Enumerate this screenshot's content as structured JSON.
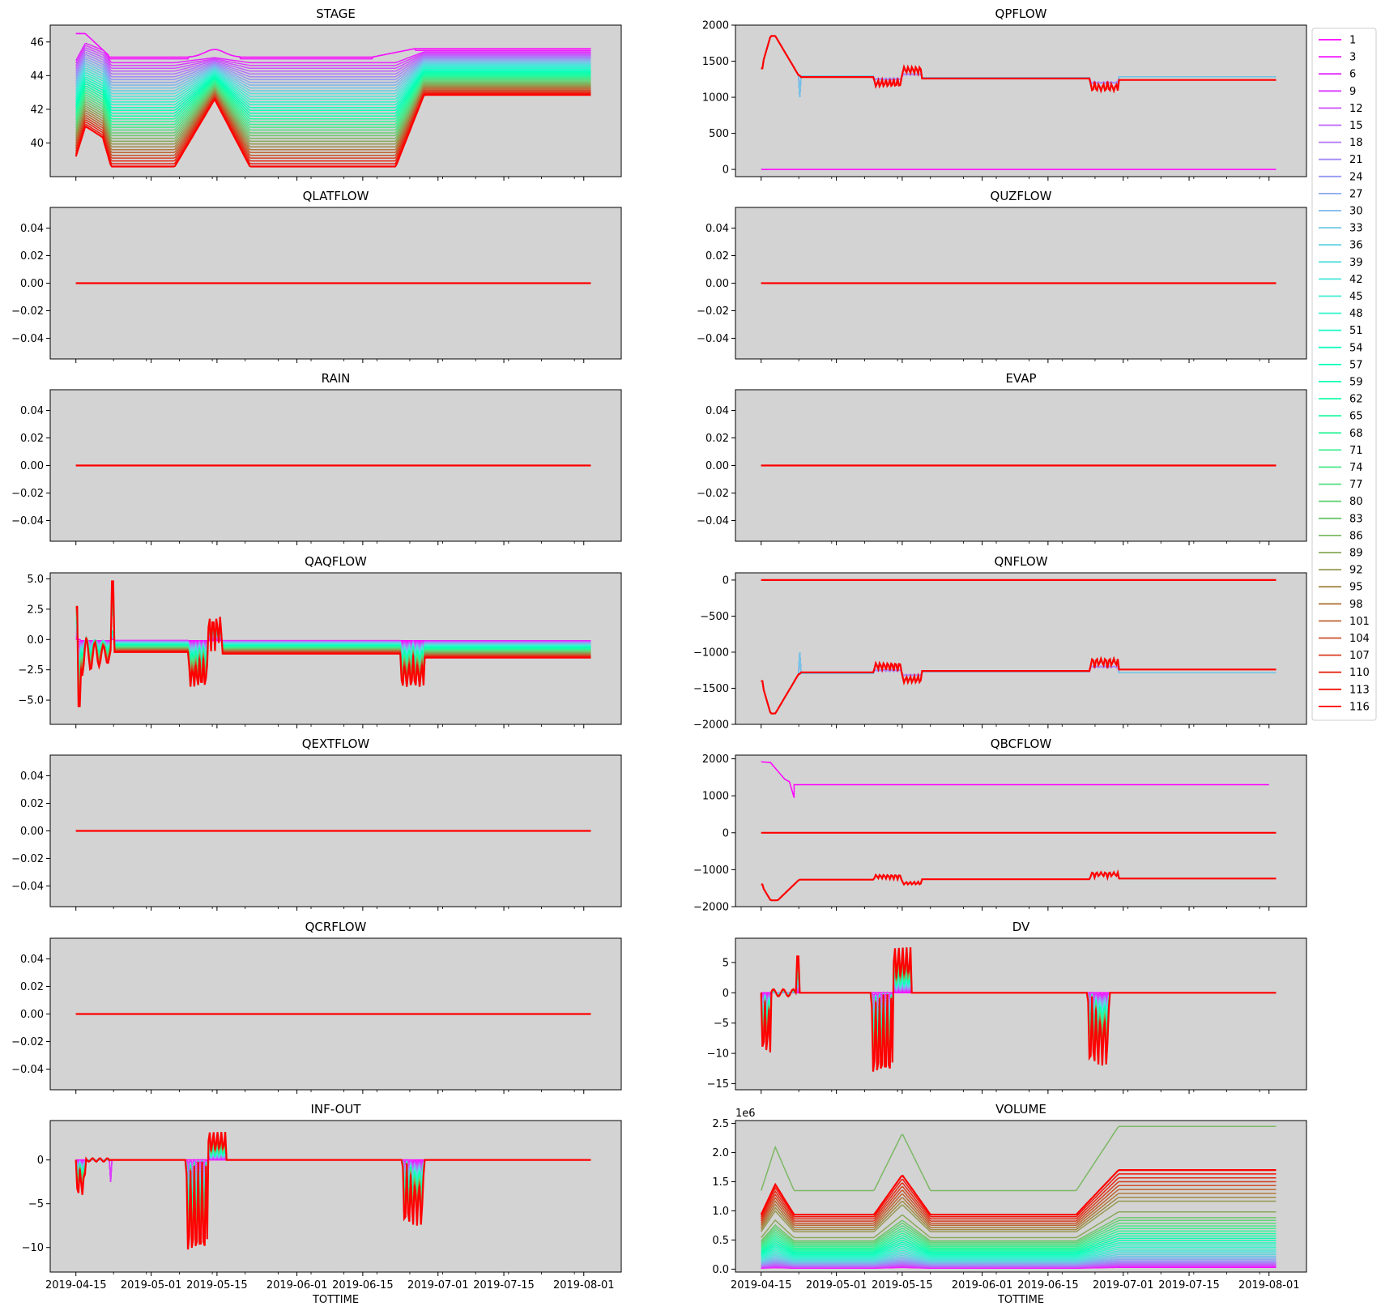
{
  "figure": {
    "xlabel": "TOTTIME",
    "x_tick_labels": [
      "2019-04-15",
      "2019-05-01",
      "2019-05-15",
      "2019-06-01",
      "2019-06-15",
      "2019-07-01",
      "2019-07-15",
      "2019-08-01"
    ],
    "x_tick_dates": [
      "2019-04-15",
      "2019-05-01",
      "2019-05-15",
      "2019-06-01",
      "2019-06-15",
      "2019-07-01",
      "2019-07-15",
      "2019-08-01"
    ],
    "x_range": [
      "2019-04-15",
      "2019-08-02"
    ]
  },
  "legend": {
    "placement": "right of QPFLOW panel",
    "labels": [
      "1",
      "3",
      "6",
      "9",
      "12",
      "15",
      "18",
      "21",
      "24",
      "27",
      "30",
      "33",
      "36",
      "39",
      "42",
      "45",
      "48",
      "51",
      "54",
      "57",
      "59",
      "62",
      "65",
      "68",
      "71",
      "74",
      "77",
      "80",
      "83",
      "86",
      "89",
      "92",
      "95",
      "98",
      "101",
      "104",
      "107",
      "110",
      "113",
      "116"
    ]
  },
  "colors": {
    "axes_background": "#d3d3d3",
    "colormap": "rainbow",
    "first_series": "#8000ff",
    "last_series": "#ff0000"
  },
  "chart_data": [
    {
      "id": "STAGE",
      "title": "STAGE",
      "type": "line",
      "ylim": [
        38,
        47
      ],
      "yticks": [
        40,
        42,
        44,
        46
      ],
      "ytick_labels": [
        "40",
        "42",
        "44",
        "46"
      ],
      "grid": false,
      "series_summary": {
        "top_series_1": [
          [
            "2019-04-15",
            46.5
          ],
          [
            "2019-04-20",
            45.2
          ],
          [
            "2019-05-10",
            45.1
          ],
          [
            "2019-05-15",
            45.5
          ],
          [
            "2019-05-20",
            45.1
          ],
          [
            "2019-06-20",
            45.1
          ],
          [
            "2019-06-25",
            45.5
          ],
          [
            "2019-08-01",
            45.6
          ]
        ],
        "bottom_series_116": [
          [
            "2019-04-15",
            39.2
          ],
          [
            "2019-04-17",
            41.0
          ],
          [
            "2019-04-21",
            40.4
          ],
          [
            "2019-04-22",
            38.7
          ],
          [
            "2019-05-05",
            38.7
          ],
          [
            "2019-05-14",
            42.6
          ],
          [
            "2019-05-22",
            38.6
          ],
          [
            "2019-06-22",
            38.6
          ],
          [
            "2019-06-28",
            42.8
          ],
          [
            "2019-08-01",
            42.8
          ]
        ]
      }
    },
    {
      "id": "QPFLOW",
      "title": "QPFLOW",
      "type": "line",
      "ylim": [
        -100,
        2000
      ],
      "yticks": [
        0,
        500,
        1000,
        1500,
        2000
      ],
      "ytick_labels": [
        "0",
        "500",
        "1000",
        "1500",
        "2000"
      ],
      "grid": false,
      "series_summary": {
        "series_1": [
          [
            "2019-04-15",
            0
          ],
          [
            "2019-08-01",
            0
          ]
        ],
        "others": [
          [
            "2019-04-15",
            1400
          ],
          [
            "2019-04-17",
            1850
          ],
          [
            "2019-04-22",
            1300
          ],
          [
            "2019-05-09",
            1270
          ],
          [
            "2019-05-12",
            1150
          ],
          [
            "2019-05-16",
            1400
          ],
          [
            "2019-05-19",
            1270
          ],
          [
            "2019-06-22",
            1260
          ],
          [
            "2019-06-25",
            1120
          ],
          [
            "2019-07-01",
            1250
          ],
          [
            "2019-08-01",
            1250
          ]
        ]
      }
    },
    {
      "id": "QLATFLOW",
      "title": "QLATFLOW",
      "type": "line",
      "ylim": [
        -0.055,
        0.055
      ],
      "yticks": [
        -0.04,
        -0.02,
        0,
        0.02,
        0.04
      ],
      "ytick_labels": [
        "−0.04",
        "−0.02",
        "0.00",
        "0.02",
        "0.04"
      ],
      "grid": false,
      "series_summary": {
        "all": [
          [
            "2019-04-15",
            0
          ],
          [
            "2019-08-01",
            0
          ]
        ]
      }
    },
    {
      "id": "QUZFLOW",
      "title": "QUZFLOW",
      "type": "line",
      "ylim": [
        -0.055,
        0.055
      ],
      "yticks": [
        -0.04,
        -0.02,
        0,
        0.02,
        0.04
      ],
      "ytick_labels": [
        "−0.04",
        "−0.02",
        "0.00",
        "0.02",
        "0.04"
      ],
      "grid": false,
      "series_summary": {
        "all": [
          [
            "2019-04-15",
            0
          ],
          [
            "2019-08-01",
            0
          ]
        ]
      }
    },
    {
      "id": "RAIN",
      "title": "RAIN",
      "type": "line",
      "ylim": [
        -0.055,
        0.055
      ],
      "yticks": [
        -0.04,
        -0.02,
        0,
        0.02,
        0.04
      ],
      "ytick_labels": [
        "−0.04",
        "−0.02",
        "0.00",
        "0.02",
        "0.04"
      ],
      "grid": false,
      "series_summary": {
        "all": [
          [
            "2019-04-15",
            0
          ],
          [
            "2019-08-01",
            0
          ]
        ]
      }
    },
    {
      "id": "EVAP",
      "title": "EVAP",
      "type": "line",
      "ylim": [
        -0.055,
        0.055
      ],
      "yticks": [
        -0.04,
        -0.02,
        0,
        0.02,
        0.04
      ],
      "ytick_labels": [
        "−0.04",
        "−0.02",
        "0.00",
        "0.02",
        "0.04"
      ],
      "grid": false,
      "series_summary": {
        "all": [
          [
            "2019-04-15",
            0
          ],
          [
            "2019-08-01",
            0
          ]
        ]
      }
    },
    {
      "id": "QAQFLOW",
      "title": "QAQFLOW",
      "type": "line",
      "ylim": [
        -7,
        5.5
      ],
      "yticks": [
        -5,
        -2.5,
        0,
        2.5,
        5
      ],
      "ytick_labels": [
        "−5.0",
        "−2.5",
        "0.0",
        "2.5",
        "5.0"
      ],
      "grid": false,
      "series_summary": {
        "typical": [
          [
            "2019-04-15",
            2.7
          ],
          [
            "2019-04-15",
            -5.5
          ],
          [
            "2019-04-17",
            -0.3
          ],
          [
            "2019-04-22",
            -0.5
          ],
          [
            "2019-05-09",
            -0.8
          ],
          [
            "2019-05-12",
            -3.2
          ],
          [
            "2019-05-16",
            2.8
          ],
          [
            "2019-05-18",
            -0.8
          ],
          [
            "2019-06-22",
            -0.8
          ],
          [
            "2019-06-25",
            -3.5
          ],
          [
            "2019-06-30",
            -1.3
          ],
          [
            "2019-08-01",
            -1.2
          ]
        ]
      }
    },
    {
      "id": "QNFLOW",
      "title": "QNFLOW",
      "type": "line",
      "ylim": [
        -2000,
        100
      ],
      "yticks": [
        -2000,
        -1500,
        -1000,
        -500,
        0
      ],
      "ytick_labels": [
        "−2000",
        "−1500",
        "−1000",
        "−500",
        "0"
      ],
      "grid": false,
      "series_summary": {
        "top": [
          [
            "2019-04-15",
            0
          ],
          [
            "2019-08-01",
            0
          ]
        ],
        "others": [
          [
            "2019-04-15",
            -1400
          ],
          [
            "2019-04-17",
            -1850
          ],
          [
            "2019-04-22",
            -1300
          ],
          [
            "2019-05-09",
            -1270
          ],
          [
            "2019-05-12",
            -1100
          ],
          [
            "2019-05-16",
            -1400
          ],
          [
            "2019-05-19",
            -1270
          ],
          [
            "2019-06-22",
            -1260
          ],
          [
            "2019-06-25",
            -1080
          ],
          [
            "2019-07-01",
            -1250
          ],
          [
            "2019-08-01",
            -1250
          ]
        ]
      }
    },
    {
      "id": "QEXTFLOW",
      "title": "QEXTFLOW",
      "type": "line",
      "ylim": [
        -0.055,
        0.055
      ],
      "yticks": [
        -0.04,
        -0.02,
        0,
        0.02,
        0.04
      ],
      "ytick_labels": [
        "−0.04",
        "−0.02",
        "0.00",
        "0.02",
        "0.04"
      ],
      "grid": false,
      "series_summary": {
        "all": [
          [
            "2019-04-15",
            0
          ],
          [
            "2019-08-01",
            0
          ]
        ]
      }
    },
    {
      "id": "QBCFLOW",
      "title": "QBCFLOW",
      "type": "line",
      "ylim": [
        -2000,
        2100
      ],
      "yticks": [
        -2000,
        -1000,
        0,
        1000,
        2000
      ],
      "ytick_labels": [
        "−2000",
        "−1000",
        "0",
        "1000",
        "2000"
      ],
      "grid": false,
      "series_summary": {
        "series_1": [
          [
            "2019-04-15",
            1920
          ],
          [
            "2019-04-17",
            1900
          ],
          [
            "2019-04-21",
            1380
          ],
          [
            "2019-04-22",
            1300
          ],
          [
            "2019-08-01",
            1300
          ]
        ],
        "middle": [
          [
            "2019-04-15",
            0
          ],
          [
            "2019-08-01",
            0
          ]
        ],
        "series_116": [
          [
            "2019-04-15",
            -1400
          ],
          [
            "2019-04-17",
            -1850
          ],
          [
            "2019-04-22",
            -1300
          ],
          [
            "2019-05-09",
            -1270
          ],
          [
            "2019-05-12",
            -1100
          ],
          [
            "2019-05-16",
            -1400
          ],
          [
            "2019-05-19",
            -1270
          ],
          [
            "2019-06-22",
            -1260
          ],
          [
            "2019-06-25",
            -1080
          ],
          [
            "2019-07-01",
            -1250
          ],
          [
            "2019-08-01",
            -1250
          ]
        ]
      }
    },
    {
      "id": "QCRFLOW",
      "title": "QCRFLOW",
      "type": "line",
      "ylim": [
        -0.055,
        0.055
      ],
      "yticks": [
        -0.04,
        -0.02,
        0,
        0.02,
        0.04
      ],
      "ytick_labels": [
        "−0.04",
        "−0.02",
        "0.00",
        "0.02",
        "0.04"
      ],
      "grid": false,
      "series_summary": {
        "all": [
          [
            "2019-04-15",
            0
          ],
          [
            "2019-08-01",
            0
          ]
        ]
      }
    },
    {
      "id": "DV",
      "title": "DV",
      "type": "line",
      "ylim": [
        -16,
        9
      ],
      "yticks": [
        -15,
        -10,
        -5,
        0,
        5
      ],
      "ytick_labels": [
        "−15",
        "−10",
        "−5",
        "0",
        "5"
      ],
      "grid": false,
      "series_summary": {
        "typical": [
          [
            "2019-04-15",
            -10
          ],
          [
            "2019-04-17",
            -1
          ],
          [
            "2019-04-22",
            5
          ],
          [
            "2019-04-23",
            0
          ],
          [
            "2019-05-09",
            0
          ],
          [
            "2019-05-12",
            -15
          ],
          [
            "2019-05-16",
            7.5
          ],
          [
            "2019-05-19",
            0
          ],
          [
            "2019-06-22",
            0
          ],
          [
            "2019-06-25",
            -12.5
          ],
          [
            "2019-06-28",
            0
          ],
          [
            "2019-08-01",
            0
          ]
        ]
      }
    },
    {
      "id": "INF-OUT",
      "title": "INF-OUT",
      "type": "line",
      "ylim": [
        -12.8,
        4.5
      ],
      "yticks": [
        -10,
        -5,
        0
      ],
      "ytick_labels": [
        "−10",
        "−5",
        "0"
      ],
      "grid": false,
      "series_summary": {
        "typical": [
          [
            "2019-04-15",
            0
          ],
          [
            "2019-04-16",
            -4
          ],
          [
            "2019-04-22",
            -2.5
          ],
          [
            "2019-05-09",
            0.5
          ],
          [
            "2019-05-11",
            -12
          ],
          [
            "2019-05-15",
            3.5
          ],
          [
            "2019-05-19",
            0
          ],
          [
            "2019-06-22",
            0
          ],
          [
            "2019-06-25",
            -8
          ],
          [
            "2019-06-29",
            0
          ],
          [
            "2019-08-01",
            0
          ]
        ]
      }
    },
    {
      "id": "VOLUME",
      "title": "VOLUME",
      "type": "line",
      "ylim": [
        -0.05,
        2.55
      ],
      "yticks": [
        0,
        0.5,
        1,
        1.5,
        2,
        2.5
      ],
      "ytick_labels": [
        "0.0",
        "0.5",
        "1.0",
        "1.5",
        "2.0",
        "2.5"
      ],
      "y_offset_text": "1e6",
      "grid": false,
      "series_summary": {
        "max_series": [
          [
            "2019-04-15",
            1.6
          ],
          [
            "2019-04-18",
            2.05
          ],
          [
            "2019-04-22",
            1.45
          ],
          [
            "2019-05-08",
            1.4
          ],
          [
            "2019-05-15",
            2.35
          ],
          [
            "2019-05-20",
            1.42
          ],
          [
            "2019-06-22",
            1.4
          ],
          [
            "2019-06-30",
            2.45
          ],
          [
            "2019-08-01",
            2.45
          ]
        ]
      }
    }
  ]
}
